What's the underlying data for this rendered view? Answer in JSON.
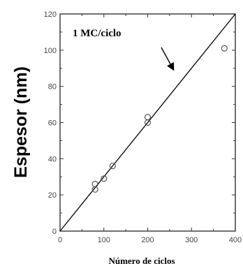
{
  "chart_data": {
    "type": "scatter",
    "title": "",
    "xlabel": "Número de ciclos",
    "ylabel": "Espesor (nm)",
    "xlim": [
      0,
      400
    ],
    "ylim": [
      0,
      120
    ],
    "x_ticks": [
      0,
      100,
      200,
      300,
      400
    ],
    "y_ticks": [
      0,
      20,
      40,
      60,
      80,
      100,
      120
    ],
    "grid": false,
    "series": [
      {
        "type": "scatter",
        "marker": "open-circle",
        "x": [
          80,
          80,
          100,
          120,
          200,
          200,
          375
        ],
        "y": [
          23,
          26,
          29,
          36,
          60,
          63,
          101
        ]
      },
      {
        "type": "line",
        "x": [
          0,
          400
        ],
        "y": [
          0,
          120
        ]
      }
    ],
    "annotations": [
      {
        "text": "1 MC/ciclo",
        "arrow": true
      }
    ],
    "colors": {
      "line": "#000000",
      "marker": "#555555",
      "axis": "#333333"
    }
  }
}
